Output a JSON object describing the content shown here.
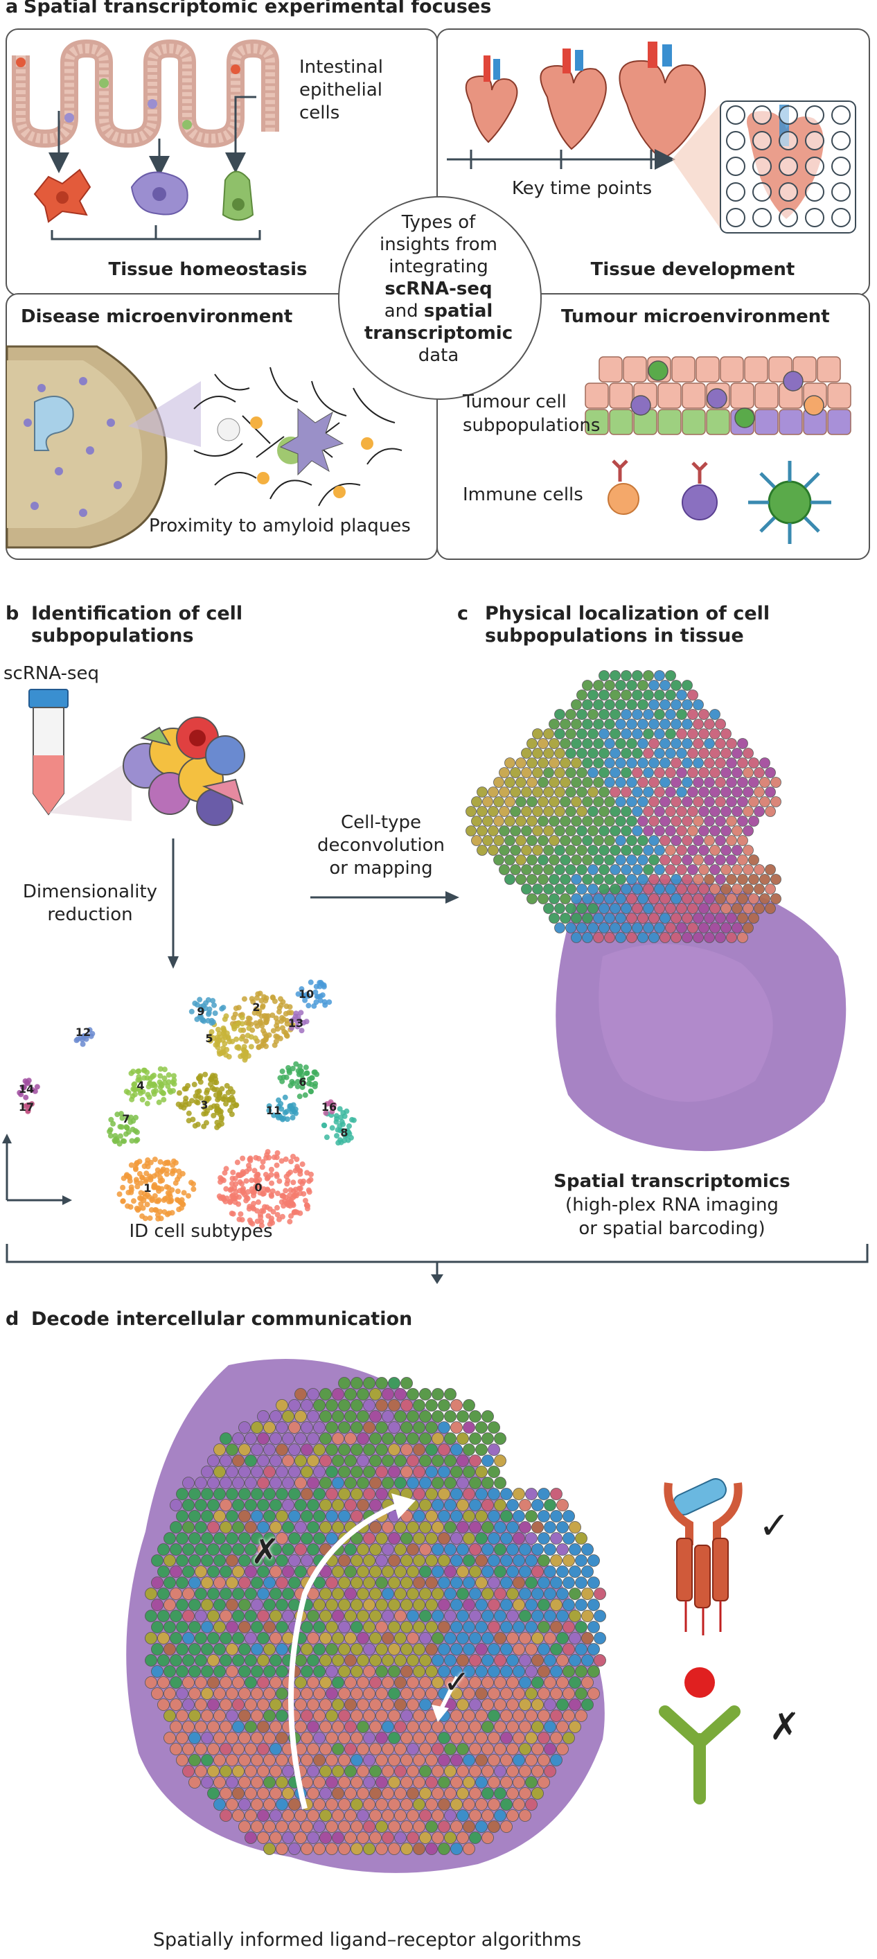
{
  "panel_a": {
    "label": "a",
    "title": "Spatial transcriptomic experimental focuses",
    "intestinal_label": [
      "Intestinal",
      "epithelial",
      "cells"
    ],
    "tissue_homeostasis": "Tissue homeostasis",
    "key_time_points": "Key time points",
    "tissue_development": "Tissue development",
    "center_text": {
      "l1": "Types of",
      "l2": "insights from",
      "l3": "integrating",
      "l4": "scRNA-seq",
      "l5": "and",
      "l5b": "spatial",
      "l6": "transcriptomic",
      "l7": "data"
    },
    "disease_microenvironment": "Disease microenvironment",
    "proximity": "Proximity to amyloid plaques",
    "tumour_microenvironment": "Tumour microenvironment",
    "tumour_subpops": [
      "Tumour cell",
      "subpopulations"
    ],
    "immune_cells": "Immune cells"
  },
  "panel_b": {
    "label": "b",
    "title": [
      "Identification of cell",
      "subpopulations"
    ],
    "scrna": "scRNA-seq",
    "dim_reduction": [
      "Dimensionality",
      "reduction"
    ],
    "cluster_ids": [
      "0",
      "1",
      "2",
      "3",
      "4",
      "5",
      "6",
      "7",
      "8",
      "9",
      "10",
      "11",
      "12",
      "13",
      "14",
      "16",
      "17"
    ],
    "id_subtypes": "ID cell subtypes"
  },
  "panel_c": {
    "label": "c",
    "title": [
      "Physical localization of cell",
      "subpopulations in tissue"
    ],
    "arrow_label": [
      "Cell-type",
      "deconvolution",
      "or mapping"
    ],
    "spatial_title": "Spatial transcriptomics",
    "spatial_sub": [
      "(high-plex RNA imaging",
      "or spatial barcoding)"
    ]
  },
  "panel_d": {
    "label": "d",
    "title": "Decode intercellular communication",
    "caption": "Spatially informed ligand–receptor algorithms",
    "check": "✓",
    "cross": "✗"
  },
  "colors": {
    "border": "#555555",
    "arrow": "#3b4a55",
    "spot_palette": [
      "#c7a54a",
      "#a8a33a",
      "#5a9a4a",
      "#3f9a5e",
      "#3d8ec9",
      "#c9607a",
      "#a44e9e",
      "#d98072",
      "#b06a4f",
      "#9a6cc0"
    ],
    "cluster_palette": [
      "#f47c6e",
      "#f29a3a",
      "#c9a43a",
      "#a8a020",
      "#8fc84a",
      "#c8b43a",
      "#3fae5e",
      "#7cc04a",
      "#3cb8a0",
      "#4aa0c8",
      "#4a9ad8",
      "#3aa0c0",
      "#6a8ad0",
      "#a070c0",
      "#a04ea0",
      "#c060a0",
      "#c05080"
    ]
  }
}
